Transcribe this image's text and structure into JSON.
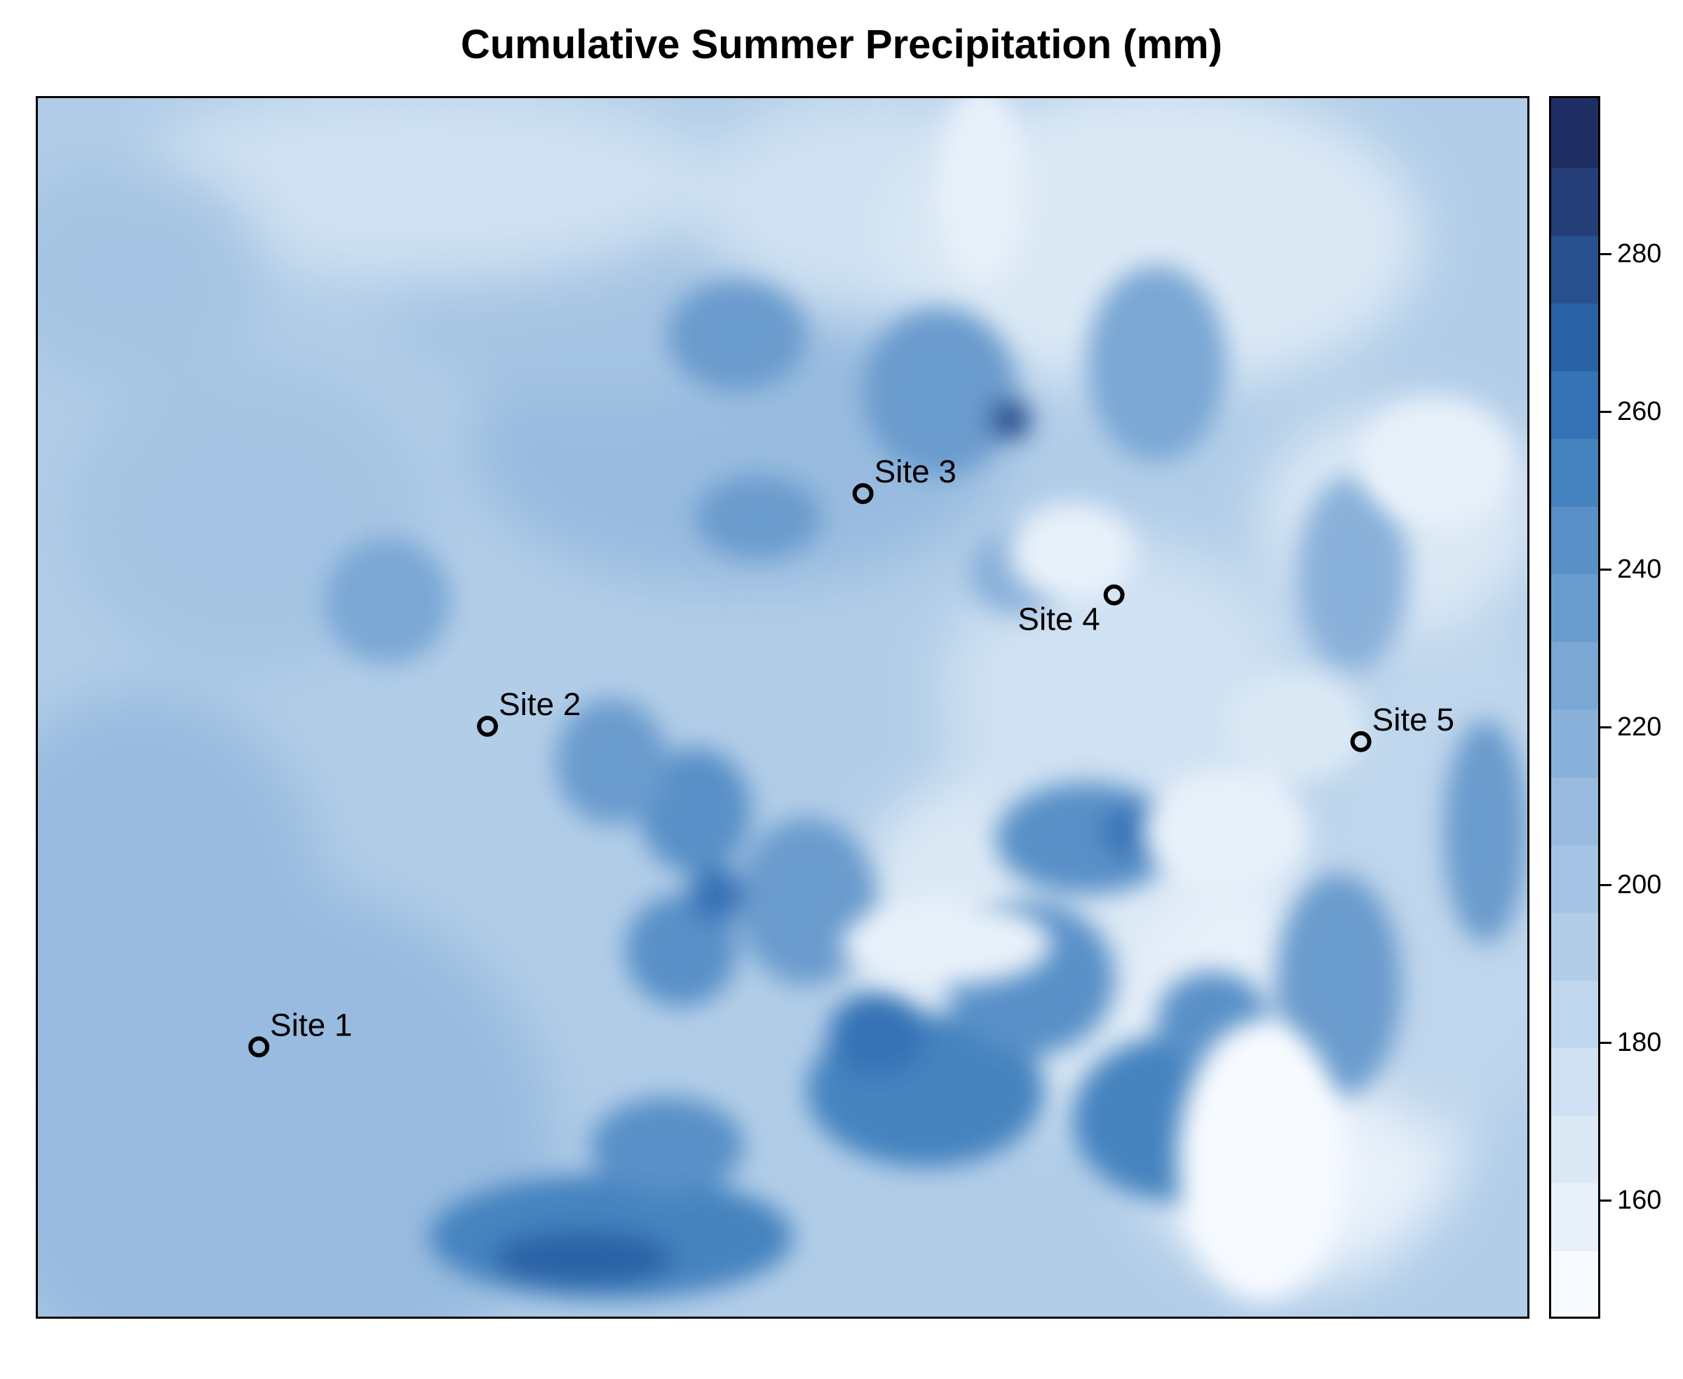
{
  "title": "Cumulative Summer Precipitation (mm)",
  "legend": {
    "min": 145,
    "max": 300,
    "step": 10,
    "tick_labels": [
      "160",
      "180",
      "200",
      "220",
      "240",
      "260",
      "280"
    ],
    "colors": [
      "#f7fbff",
      "#e8f1fa",
      "#dce9f5",
      "#cfe1f2",
      "#bfd6ec",
      "#b1cde8",
      "#a5c4e3",
      "#98bbdf",
      "#8ab1da",
      "#7aa7d4",
      "#6a9bcd",
      "#5890c7",
      "#4583bf",
      "#3672b6",
      "#2b62a6",
      "#28508f",
      "#243e77",
      "#1f2f63"
    ]
  },
  "sites": [
    {
      "label": "Site 1",
      "label_side": "right"
    },
    {
      "label": "Site 2",
      "label_side": "right"
    },
    {
      "label": "Site 3",
      "label_side": "right"
    },
    {
      "label": "Site 4",
      "label_side": "left"
    },
    {
      "label": "Site 5",
      "label_side": "right"
    }
  ]
}
